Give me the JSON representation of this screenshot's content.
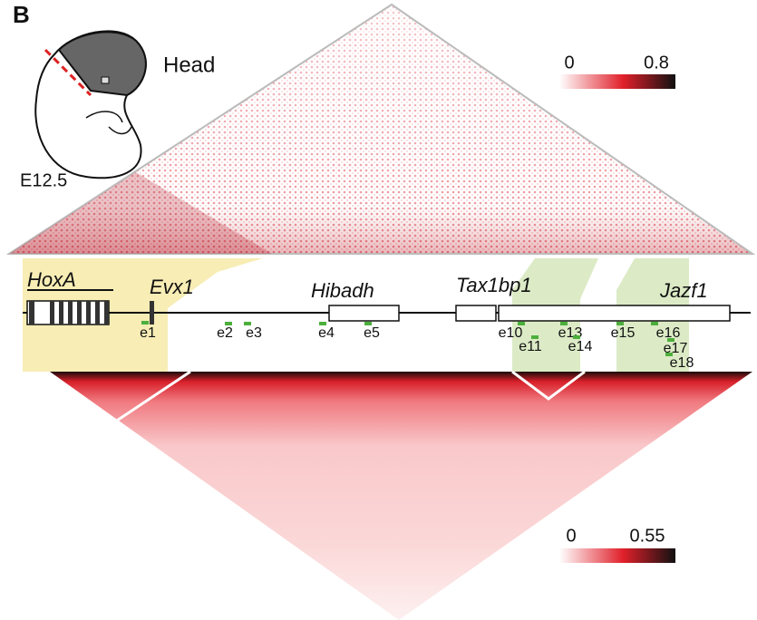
{
  "panel_label": "B",
  "inset": {
    "tissue": "Head",
    "stage": "E12.5"
  },
  "colorbars": [
    {
      "min": 0,
      "max": 0.8
    },
    {
      "min": 0,
      "max": 0.55
    }
  ],
  "genes": [
    "HoxA",
    "Evx1",
    "Hibadh",
    "Tax1bp1",
    "Jazf1"
  ],
  "enhancers": [
    "e1",
    "e2",
    "e3",
    "e4",
    "e5",
    "e10",
    "e11",
    "e13",
    "e14",
    "e15",
    "e16",
    "e17",
    "e18"
  ]
}
